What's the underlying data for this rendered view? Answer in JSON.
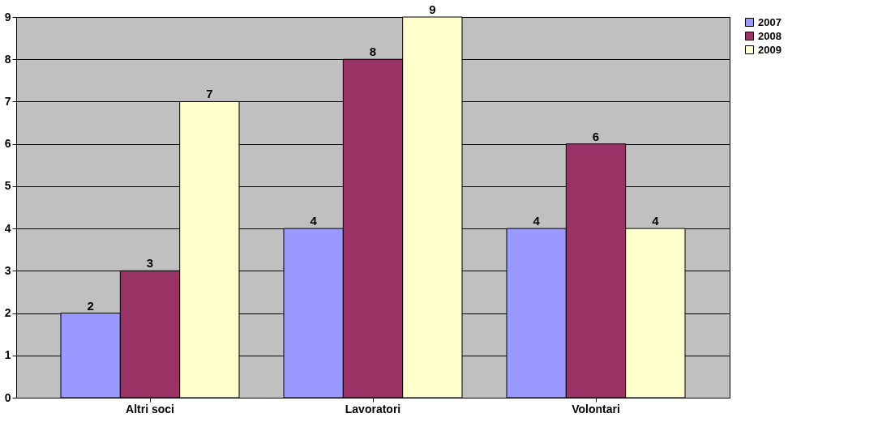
{
  "chart_data": {
    "type": "bar",
    "categories": [
      "Altri soci",
      "Lavoratori",
      "Volontari"
    ],
    "series": [
      {
        "name": "2007",
        "color": "#9999ff",
        "values": [
          2,
          4,
          4
        ]
      },
      {
        "name": "2008",
        "color": "#993366",
        "values": [
          3,
          8,
          6
        ]
      },
      {
        "name": "2009",
        "color": "#ffffcc",
        "values": [
          7,
          9,
          4
        ]
      }
    ],
    "ylim": [
      0,
      9
    ],
    "yticks": [
      0,
      1,
      2,
      3,
      4,
      5,
      6,
      7,
      8,
      9
    ],
    "grid": "y",
    "legend": "right",
    "data_labels": true
  }
}
